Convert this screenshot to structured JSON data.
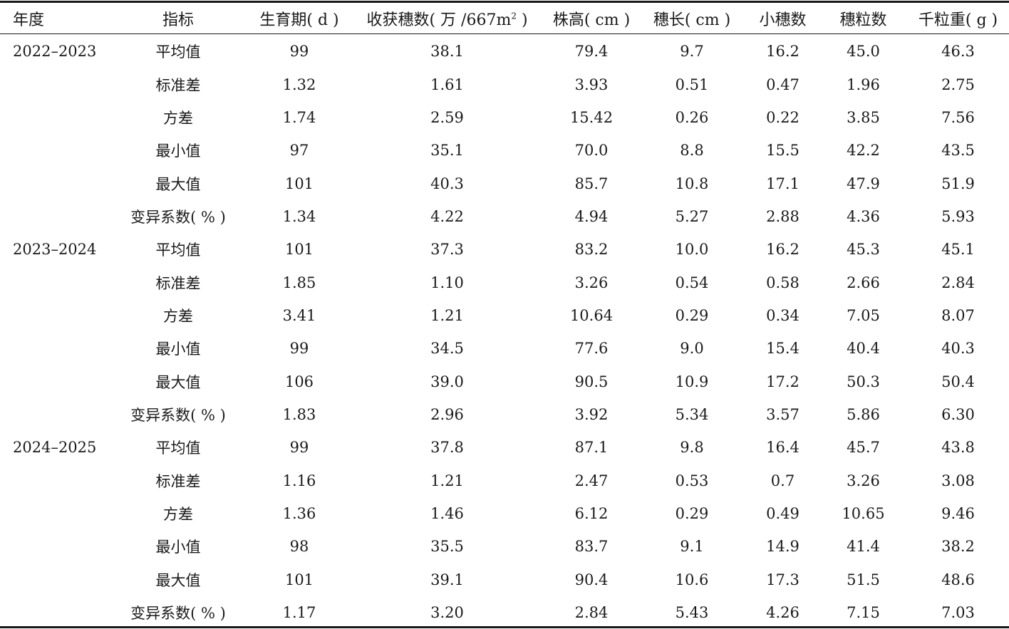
{
  "table": {
    "headers": [
      "年度",
      "指标",
      "生育期( d )",
      "收获穗数( 万 /667m² )",
      "株高( cm )",
      "穗长( cm )",
      "小穗数",
      "穗粒数",
      "千粒重( g )"
    ],
    "headers_display": {
      "spikes_prefix": "收获穗数( 万 /667m",
      "spikes_sup": "2",
      "spikes_suffix": " )"
    },
    "rows": [
      [
        "2022–2023",
        "平均值",
        "99",
        "38.1",
        "79.4",
        "9.7",
        "16.2",
        "45.0",
        "46.3"
      ],
      [
        "",
        "标准差",
        "1.32",
        "1.61",
        "3.93",
        "0.51",
        "0.47",
        "1.96",
        "2.75"
      ],
      [
        "",
        "方差",
        "1.74",
        "2.59",
        "15.42",
        "0.26",
        "0.22",
        "3.85",
        "7.56"
      ],
      [
        "",
        "最小值",
        "97",
        "35.1",
        "70.0",
        "8.8",
        "15.5",
        "42.2",
        "43.5"
      ],
      [
        "",
        "最大值",
        "101",
        "40.3",
        "85.7",
        "10.8",
        "17.1",
        "47.9",
        "51.9"
      ],
      [
        "",
        "变异系数( % )",
        "1.34",
        "4.22",
        "4.94",
        "5.27",
        "2.88",
        "4.36",
        "5.93"
      ],
      [
        "2023–2024",
        "平均值",
        "101",
        "37.3",
        "83.2",
        "10.0",
        "16.2",
        "45.3",
        "45.1"
      ],
      [
        "",
        "标准差",
        "1.85",
        "1.10",
        "3.26",
        "0.54",
        "0.58",
        "2.66",
        "2.84"
      ],
      [
        "",
        "方差",
        "3.41",
        "1.21",
        "10.64",
        "0.29",
        "0.34",
        "7.05",
        "8.07"
      ],
      [
        "",
        "最小值",
        "99",
        "34.5",
        "77.6",
        "9.0",
        "15.4",
        "40.4",
        "40.3"
      ],
      [
        "",
        "最大值",
        "106",
        "39.0",
        "90.5",
        "10.9",
        "17.2",
        "50.3",
        "50.4"
      ],
      [
        "",
        "变异系数( % )",
        "1.83",
        "2.96",
        "3.92",
        "5.34",
        "3.57",
        "5.86",
        "6.30"
      ],
      [
        "2024–2025",
        "平均值",
        "99",
        "37.8",
        "87.1",
        "9.8",
        "16.4",
        "45.7",
        "43.8"
      ],
      [
        "",
        "标准差",
        "1.16",
        "1.21",
        "2.47",
        "0.53",
        "0.7",
        "3.26",
        "3.08"
      ],
      [
        "",
        "方差",
        "1.36",
        "1.46",
        "6.12",
        "0.29",
        "0.49",
        "10.65",
        "9.46"
      ],
      [
        "",
        "最小值",
        "98",
        "35.5",
        "83.7",
        "9.1",
        "14.9",
        "41.4",
        "38.2"
      ],
      [
        "",
        "最大值",
        "101",
        "39.1",
        "90.4",
        "10.6",
        "17.3",
        "51.5",
        "48.6"
      ],
      [
        "",
        "变异系数( % )",
        "1.17",
        "3.20",
        "2.84",
        "5.43",
        "4.26",
        "7.15",
        "7.03"
      ]
    ]
  }
}
